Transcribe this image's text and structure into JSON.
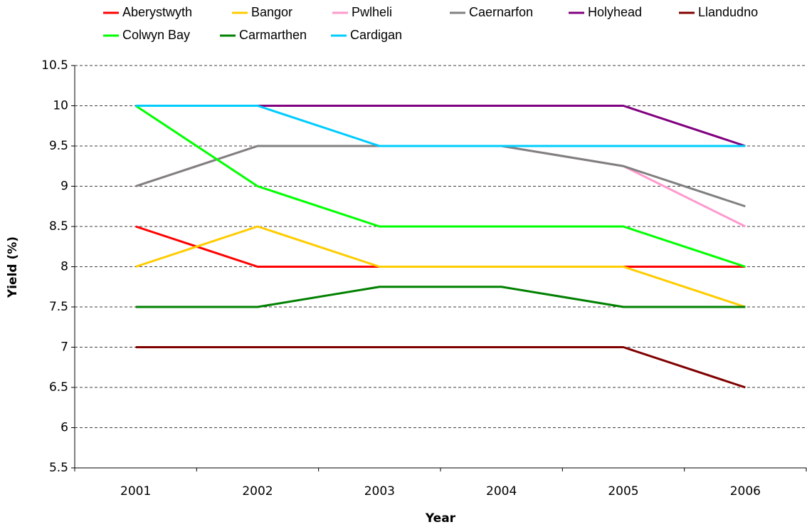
{
  "chart_data": {
    "type": "line",
    "x_label": "Year",
    "y_label": "Yield (%)",
    "categories": [
      "2001",
      "2002",
      "2003",
      "2004",
      "2005",
      "2006"
    ],
    "series": [
      {
        "name": "Aberystwyth",
        "color": "#ff0000",
        "values": [
          8.5,
          8,
          8,
          8,
          8,
          8
        ]
      },
      {
        "name": "Bangor",
        "color": "#ffcc00",
        "values": [
          8,
          8.5,
          8,
          8,
          8,
          7.5
        ]
      },
      {
        "name": "Pwlheli",
        "color": "#ff99cc",
        "values": [
          9,
          9.5,
          9.5,
          9.5,
          9.25,
          8.5
        ]
      },
      {
        "name": "Caernarfon",
        "color": "#808080",
        "values": [
          9,
          9.5,
          9.5,
          9.5,
          9.25,
          8.75
        ]
      },
      {
        "name": "Holyhead",
        "color": "#800080",
        "values": [
          10,
          10,
          10,
          10,
          10,
          9.5
        ]
      },
      {
        "name": "Llandudno",
        "color": "#800000",
        "values": [
          7,
          7,
          7,
          7,
          7,
          6.5
        ]
      },
      {
        "name": "Colwyn Bay",
        "color": "#00ff00",
        "values": [
          10,
          9,
          8.5,
          8.5,
          8.5,
          8
        ]
      },
      {
        "name": "Carmarthen",
        "color": "#008000",
        "values": [
          7.5,
          7.5,
          7.75,
          7.75,
          7.5,
          7.5
        ]
      },
      {
        "name": "Cardigan",
        "color": "#00ccff",
        "values": [
          10,
          10,
          9.5,
          9.5,
          9.5,
          9.5
        ]
      }
    ],
    "ylim": [
      5.5,
      10.5
    ],
    "yticks": [
      5.5,
      6,
      6.5,
      7,
      7.5,
      8,
      8.5,
      9,
      9.5,
      10,
      10.5
    ],
    "grid": true,
    "legend": "top"
  }
}
